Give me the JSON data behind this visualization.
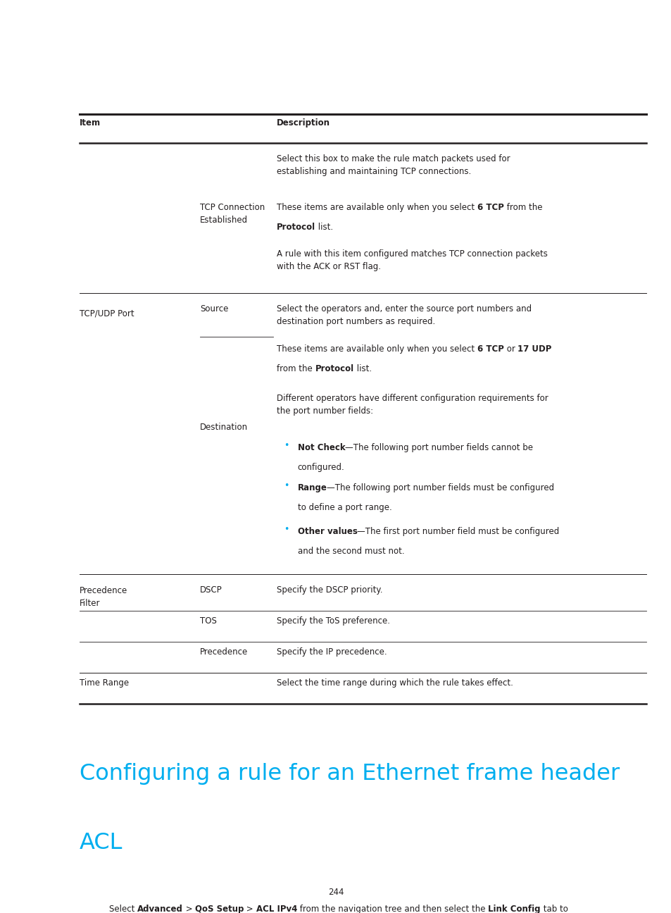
{
  "bg_color": "#ffffff",
  "text_color": "#231f20",
  "cyan_color": "#00aeef",
  "bullet_color": "#00aeef",
  "page_number": "244",
  "heading_line1": "Configuring a rule for an Ethernet frame header",
  "heading_line2": "ACL",
  "font_size": 8.5,
  "font_size_heading": 23,
  "lm": 0.118,
  "rm": 0.962,
  "col2": 0.298,
  "col3": 0.412
}
